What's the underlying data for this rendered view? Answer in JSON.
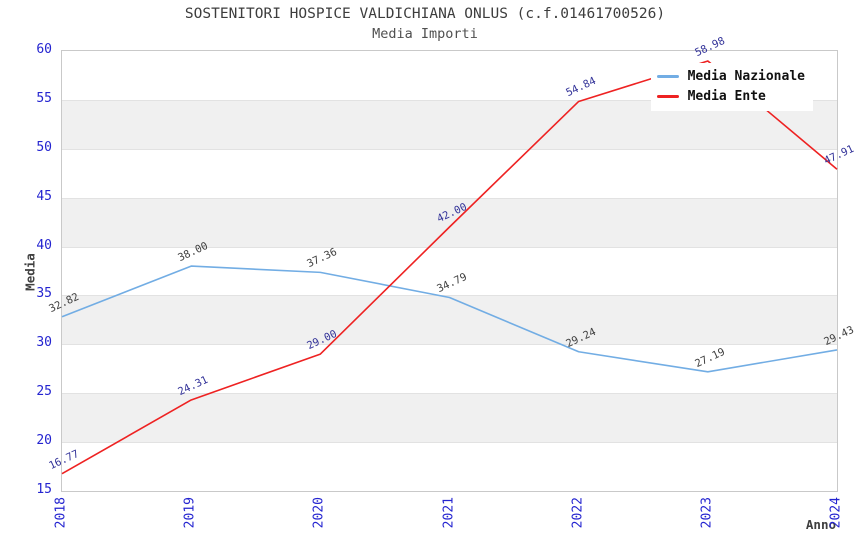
{
  "header": {
    "title": "SOSTENITORI HOSPICE VALDICHIANA ONLUS (c.f.01461700526)",
    "subtitle": "Media Importi"
  },
  "axes": {
    "x_label": "Anno",
    "y_label": "Media",
    "y_ticks": [
      "60",
      "55",
      "50",
      "45",
      "40",
      "35",
      "30",
      "25",
      "20",
      "15"
    ],
    "x_ticks": [
      "2018",
      "2019",
      "2020",
      "2021",
      "2022",
      "2023",
      "2024"
    ]
  },
  "colors": {
    "tick_label": "#2424d0",
    "title": "#3d3d3d",
    "band_gray": "#f0f0f0",
    "gridline": "#e2e2e2",
    "plot_border": "#c9c9c9",
    "legend_bg": "#ffffff",
    "series_blue": "#72ade4",
    "series_red": "#ee2222",
    "label_blue_series": "#404040",
    "label_red_series": "#333399"
  },
  "legend": {
    "items": [
      {
        "label": "Media Nazionale",
        "color": "#72ade4"
      },
      {
        "label": "Media Ente",
        "color": "#ee2222"
      }
    ]
  },
  "chart_data": {
    "type": "line",
    "title": "SOSTENITORI HOSPICE VALDICHIANA ONLUS (c.f.01461700526)",
    "subtitle": "Media Importi",
    "xlabel": "Anno",
    "ylabel": "Media",
    "x": [
      2018,
      2019,
      2020,
      2021,
      2022,
      2023,
      2024
    ],
    "ylim": [
      15,
      60
    ],
    "ytick_step": 5,
    "grid": true,
    "alternating_bands": true,
    "legend_position": "top-right",
    "series": [
      {
        "name": "Media Nazionale",
        "color": "#72ade4",
        "label_color": "#404040",
        "values": [
          32.82,
          38.0,
          37.36,
          34.79,
          29.24,
          27.19,
          29.43
        ]
      },
      {
        "name": "Media Ente",
        "color": "#ee2222",
        "label_color": "#333399",
        "values": [
          16.77,
          24.31,
          29.0,
          42.0,
          54.84,
          58.98,
          47.91
        ]
      }
    ]
  }
}
